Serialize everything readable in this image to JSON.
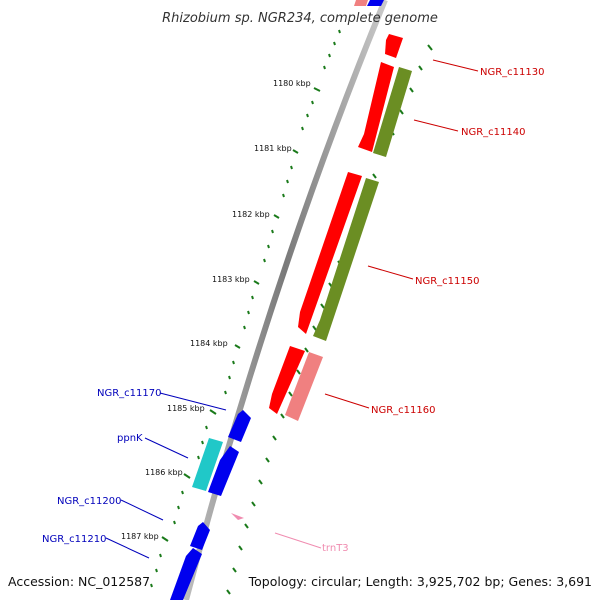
{
  "title": "Rhizobium sp. NGR234, complete genome",
  "footer": {
    "accession": "Accession: NC_012587",
    "summary": "Topology: circular; Length: 3,925,702 bp; Genes: 3,691"
  },
  "ticks": [
    "1180 kbp",
    "1181 kbp",
    "1182 kbp",
    "1183 kbp",
    "1184 kbp",
    "1185 kbp",
    "1186 kbp",
    "1187 kbp"
  ],
  "labels": {
    "c11130": "NGR_c11130",
    "c11140": "NGR_c11140",
    "c11150": "NGR_c11150",
    "c11160": "NGR_c11160",
    "c11170": "NGR_c11170",
    "ppnK": "ppnK",
    "c11200": "NGR_c11200",
    "c11210": "NGR_c11210",
    "trnT3": "trnT3"
  },
  "colors": {
    "forward_cds": "#ff0000",
    "olive_feature": "#6b8e23",
    "pink_feature": "#f08080",
    "reverse_cds": "#0000ee",
    "cyan_feature": "#20c8c8",
    "trna": "#f08cb0",
    "tick_mark": "#1a7a1a",
    "backbone": "#8a8a8a"
  }
}
